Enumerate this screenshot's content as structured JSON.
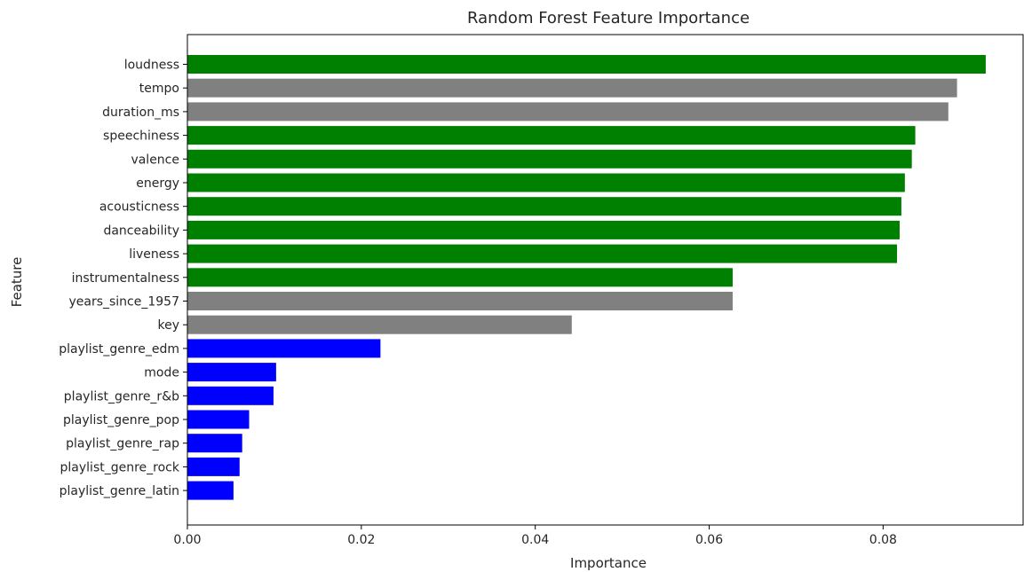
{
  "chart_data": {
    "type": "bar",
    "orientation": "horizontal",
    "title": "Random Forest Feature Importance",
    "xlabel": "Importance",
    "ylabel": "Feature",
    "xlim": [
      0,
      0.0962
    ],
    "xticks": [
      0.0,
      0.02,
      0.04,
      0.06,
      0.08
    ],
    "xtick_labels": [
      "0.00",
      "0.02",
      "0.04",
      "0.06",
      "0.08"
    ],
    "grid": false,
    "legend": "none",
    "colors": {
      "green": "#008000",
      "gray": "#808080",
      "blue": "#0000ff"
    },
    "bars": [
      {
        "label": "loudness",
        "value": 0.0918,
        "color": "green"
      },
      {
        "label": "tempo",
        "value": 0.0885,
        "color": "gray"
      },
      {
        "label": "duration_ms",
        "value": 0.0875,
        "color": "gray"
      },
      {
        "label": "speechiness",
        "value": 0.0837,
        "color": "green"
      },
      {
        "label": "valence",
        "value": 0.0833,
        "color": "green"
      },
      {
        "label": "energy",
        "value": 0.0825,
        "color": "green"
      },
      {
        "label": "acousticness",
        "value": 0.0821,
        "color": "green"
      },
      {
        "label": "danceability",
        "value": 0.0819,
        "color": "green"
      },
      {
        "label": "liveness",
        "value": 0.0816,
        "color": "green"
      },
      {
        "label": "instrumentalness",
        "value": 0.0627,
        "color": "green"
      },
      {
        "label": "years_since_1957",
        "value": 0.0627,
        "color": "gray"
      },
      {
        "label": "key",
        "value": 0.0442,
        "color": "gray"
      },
      {
        "label": "playlist_genre_edm",
        "value": 0.0222,
        "color": "blue"
      },
      {
        "label": "mode",
        "value": 0.0102,
        "color": "blue"
      },
      {
        "label": "playlist_genre_r&b",
        "value": 0.0099,
        "color": "blue"
      },
      {
        "label": "playlist_genre_pop",
        "value": 0.0071,
        "color": "blue"
      },
      {
        "label": "playlist_genre_rap",
        "value": 0.0063,
        "color": "blue"
      },
      {
        "label": "playlist_genre_rock",
        "value": 0.006,
        "color": "blue"
      },
      {
        "label": "playlist_genre_latin",
        "value": 0.0053,
        "color": "blue"
      }
    ]
  }
}
